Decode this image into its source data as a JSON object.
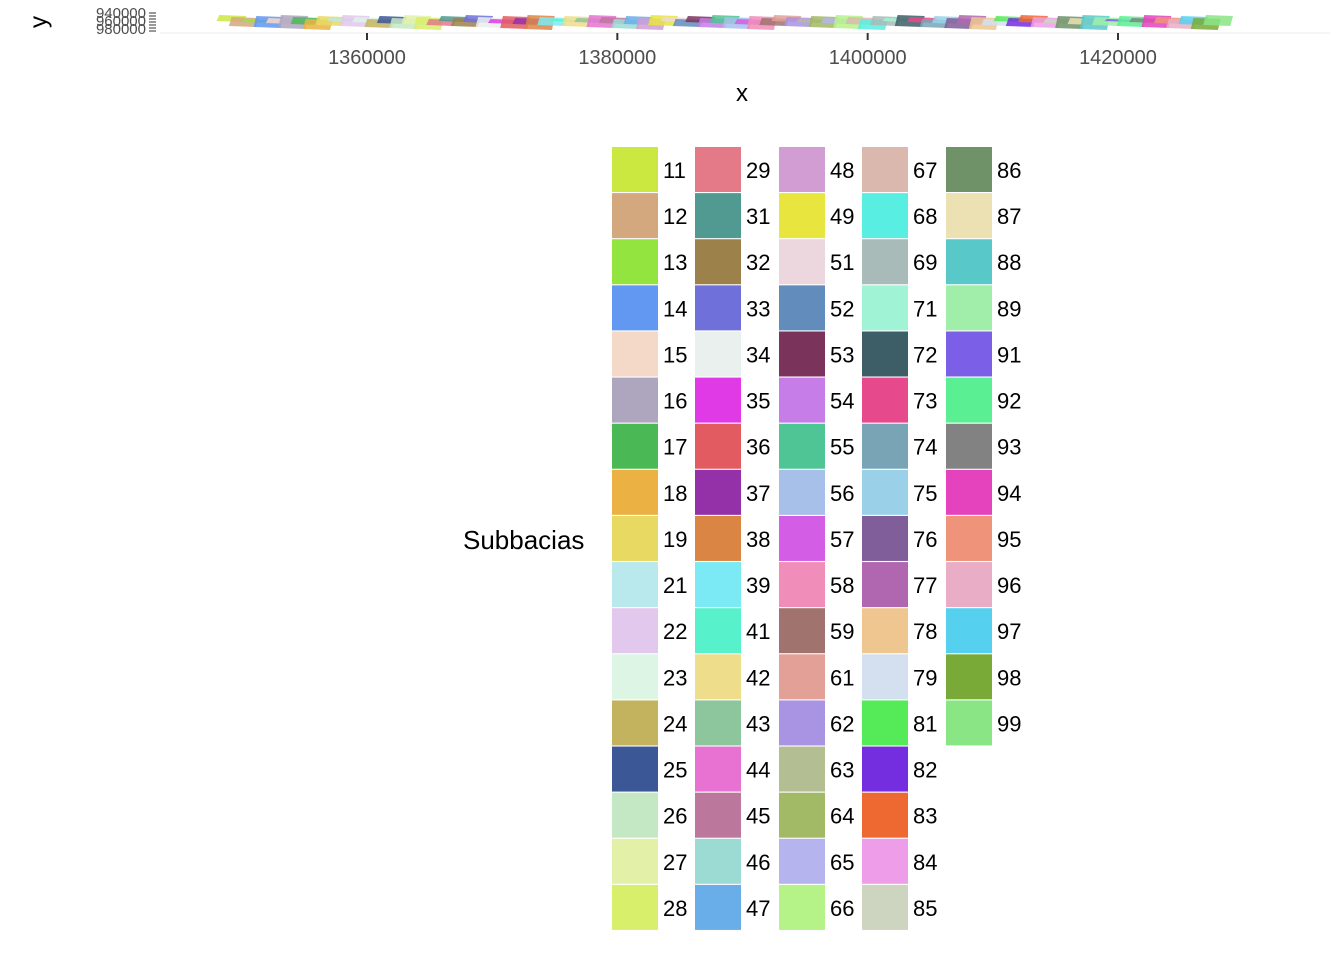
{
  "chart_data": {
    "type": "map",
    "xlabel": "x",
    "ylabel": "y",
    "x_ticks": [
      1360000,
      1380000,
      1400000,
      1420000
    ],
    "xlim": [
      1345000,
      1432000
    ],
    "y_tick_labels": [
      "940000",
      "960000",
      "980000"
    ],
    "legend": {
      "title": "Subbacias",
      "placement": "bottom-center",
      "entries": [
        {
          "label": "11",
          "color": "#cbe840"
        },
        {
          "label": "12",
          "color": "#d3a87e"
        },
        {
          "label": "13",
          "color": "#93e43e"
        },
        {
          "label": "14",
          "color": "#6297f2"
        },
        {
          "label": "15",
          "color": "#f4d8c8"
        },
        {
          "label": "16",
          "color": "#aea5bf"
        },
        {
          "label": "17",
          "color": "#4ab855"
        },
        {
          "label": "18",
          "color": "#ebb142"
        },
        {
          "label": "19",
          "color": "#e8d962"
        },
        {
          "label": "21",
          "color": "#b9e9ec"
        },
        {
          "label": "22",
          "color": "#e2c8ec"
        },
        {
          "label": "23",
          "color": "#dcf5e5"
        },
        {
          "label": "24",
          "color": "#c4b35e"
        },
        {
          "label": "25",
          "color": "#3b5796"
        },
        {
          "label": "26",
          "color": "#c4e7c4"
        },
        {
          "label": "27",
          "color": "#e3f1a8"
        },
        {
          "label": "28",
          "color": "#d7ef6a"
        },
        {
          "label": "29",
          "color": "#e47a88"
        },
        {
          "label": "31",
          "color": "#509a91"
        },
        {
          "label": "32",
          "color": "#9d814b"
        },
        {
          "label": "33",
          "color": "#7070db"
        },
        {
          "label": "34",
          "color": "#eaf0ee"
        },
        {
          "label": "35",
          "color": "#e03ae6"
        },
        {
          "label": "36",
          "color": "#e25b60"
        },
        {
          "label": "37",
          "color": "#9430a8"
        },
        {
          "label": "38",
          "color": "#db8545"
        },
        {
          "label": "39",
          "color": "#7ceaf4"
        },
        {
          "label": "41",
          "color": "#57f2cb"
        },
        {
          "label": "42",
          "color": "#eedd8a"
        },
        {
          "label": "43",
          "color": "#8dc59c"
        },
        {
          "label": "44",
          "color": "#e872d1"
        },
        {
          "label": "45",
          "color": "#bc779c"
        },
        {
          "label": "46",
          "color": "#9bdbd3"
        },
        {
          "label": "47",
          "color": "#69aee9"
        },
        {
          "label": "48",
          "color": "#d19dd3"
        },
        {
          "label": "49",
          "color": "#e8e53e"
        },
        {
          "label": "51",
          "color": "#ecd7df"
        },
        {
          "label": "52",
          "color": "#618cbc"
        },
        {
          "label": "53",
          "color": "#7a345c"
        },
        {
          "label": "54",
          "color": "#c77de7"
        },
        {
          "label": "55",
          "color": "#4fc494"
        },
        {
          "label": "56",
          "color": "#a6c0ea"
        },
        {
          "label": "57",
          "color": "#d45de6"
        },
        {
          "label": "58",
          "color": "#f08db8"
        },
        {
          "label": "59",
          "color": "#a1736e"
        },
        {
          "label": "61",
          "color": "#e2a096"
        },
        {
          "label": "62",
          "color": "#a993e3"
        },
        {
          "label": "63",
          "color": "#b3bf92"
        },
        {
          "label": "64",
          "color": "#a2b965"
        },
        {
          "label": "65",
          "color": "#b6b4ee"
        },
        {
          "label": "66",
          "color": "#b5f389"
        },
        {
          "label": "67",
          "color": "#dbb8ad"
        },
        {
          "label": "68",
          "color": "#58eee2"
        },
        {
          "label": "69",
          "color": "#a9bbb8"
        },
        {
          "label": "71",
          "color": "#a0f4d5"
        },
        {
          "label": "72",
          "color": "#3e5e67"
        },
        {
          "label": "73",
          "color": "#e74a8c"
        },
        {
          "label": "74",
          "color": "#79a4b6"
        },
        {
          "label": "75",
          "color": "#9ad1e9"
        },
        {
          "label": "76",
          "color": "#805e99"
        },
        {
          "label": "77",
          "color": "#b067af"
        },
        {
          "label": "78",
          "color": "#efc68f"
        },
        {
          "label": "79",
          "color": "#d4dff0"
        },
        {
          "label": "81",
          "color": "#54ea58"
        },
        {
          "label": "82",
          "color": "#742ee0"
        },
        {
          "label": "83",
          "color": "#ee6932"
        },
        {
          "label": "84",
          "color": "#ee9ee8"
        },
        {
          "label": "85",
          "color": "#cdd5c0"
        },
        {
          "label": "86",
          "color": "#6f9268"
        },
        {
          "label": "87",
          "color": "#ebe1b2"
        },
        {
          "label": "88",
          "color": "#58c8c9"
        },
        {
          "label": "89",
          "color": "#a0eeaa"
        },
        {
          "label": "91",
          "color": "#7c5fe7"
        },
        {
          "label": "92",
          "color": "#59ef92"
        },
        {
          "label": "93",
          "color": "#838282"
        },
        {
          "label": "94",
          "color": "#e543bd"
        },
        {
          "label": "95",
          "color": "#ef937b"
        },
        {
          "label": "96",
          "color": "#e9aec6"
        },
        {
          "label": "97",
          "color": "#55d1ef"
        },
        {
          "label": "98",
          "color": "#79aa38"
        },
        {
          "label": "99",
          "color": "#8ae584"
        }
      ]
    }
  }
}
